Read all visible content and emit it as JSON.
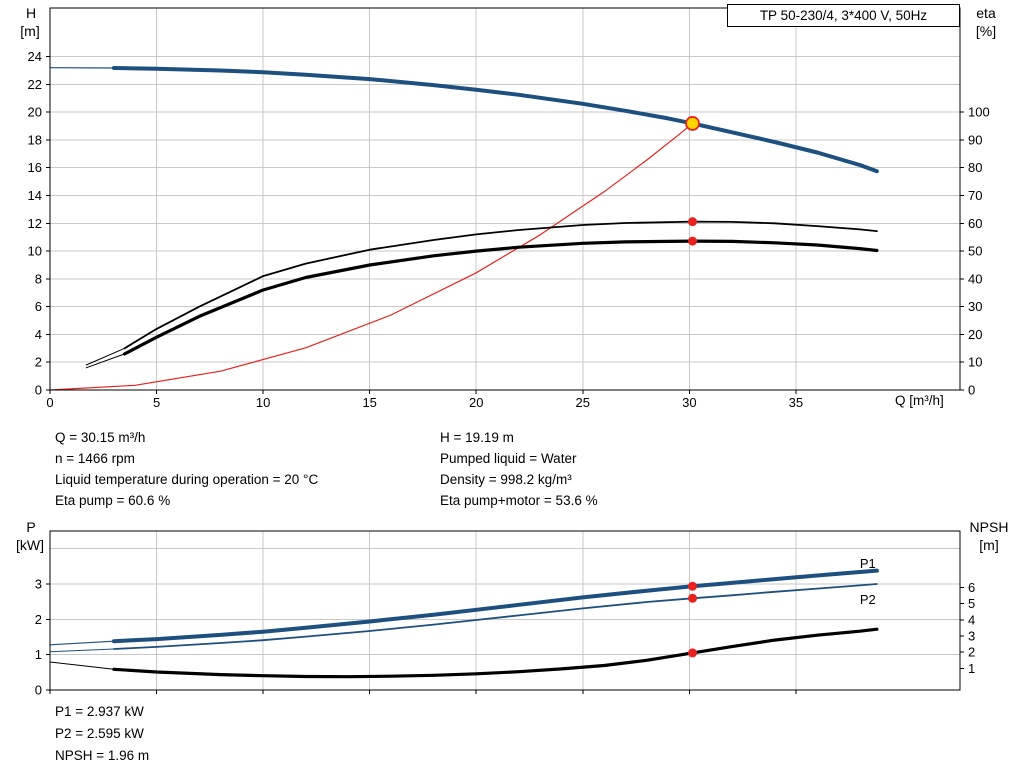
{
  "colors": {
    "blue": "#1d4f7f",
    "black": "#000000",
    "red": "#e8231e",
    "yellow": "#ffd500",
    "grid": "#c8c8c8",
    "axis": "#000000"
  },
  "top_info": {
    "left": [
      "Q = 30.15 m³/h",
      "n = 1466 rpm",
      "Liquid temperature during operation = 20 °C",
      "Eta pump = 60.6 %"
    ],
    "right": [
      "H = 19.19 m",
      "Pumped liquid = Water",
      "Density = 998.2 kg/m³",
      "Eta pump+motor = 53.6 %"
    ]
  },
  "bottom_info": [
    "P1 = 2.937 kW",
    "P2 = 2.595 kW",
    "NPSH = 1.96 m"
  ],
  "chart_data": [
    {
      "id": "hq",
      "type": "line",
      "title": "TP 50-230/4, 3*400 V, 50Hz",
      "x_axis": {
        "label": "Q [m³/h]",
        "min": 0,
        "max": 42.7,
        "ticks": [
          0,
          5,
          10,
          15,
          20,
          25,
          30,
          35
        ],
        "show_labels": true,
        "grid": true
      },
      "y_left": {
        "label": "H",
        "unit": "[m]",
        "min": 0,
        "max": 27.5,
        "ticks": [
          0,
          2,
          4,
          6,
          8,
          10,
          12,
          14,
          16,
          18,
          20,
          22,
          24
        ],
        "grid": true
      },
      "y_right": {
        "label": "eta",
        "unit": "[%]",
        "min": 0,
        "max": 137.5,
        "ticks": [
          0,
          10,
          20,
          30,
          40,
          50,
          60,
          70,
          80,
          90,
          100
        ]
      },
      "series": [
        {
          "name": "head-lead",
          "axis": "left",
          "color": "blue",
          "width": 1.2,
          "points": [
            [
              0,
              23.2
            ],
            [
              3,
              23.18
            ]
          ]
        },
        {
          "name": "head",
          "axis": "left",
          "color": "blue",
          "width": 4,
          "points": [
            [
              3,
              23.18
            ],
            [
              5,
              23.12
            ],
            [
              8,
              23.0
            ],
            [
              10,
              22.88
            ],
            [
              12,
              22.7
            ],
            [
              15,
              22.38
            ],
            [
              18,
              21.95
            ],
            [
              20,
              21.62
            ],
            [
              22,
              21.25
            ],
            [
              25,
              20.6
            ],
            [
              27,
              20.1
            ],
            [
              29,
              19.55
            ],
            [
              30.15,
              19.19
            ],
            [
              32,
              18.55
            ],
            [
              34,
              17.85
            ],
            [
              36,
              17.1
            ],
            [
              38,
              16.2
            ],
            [
              38.8,
              15.75
            ]
          ]
        },
        {
          "name": "duty-parabola",
          "axis": "left",
          "color": "red",
          "width": 1.2,
          "points": [
            [
              0,
              0
            ],
            [
              4,
              0.34
            ],
            [
              8,
              1.35
            ],
            [
              12,
              3.04
            ],
            [
              16,
              5.4
            ],
            [
              20,
              8.44
            ],
            [
              23,
              11.17
            ],
            [
              26,
              14.27
            ],
            [
              28,
              16.55
            ],
            [
              29.5,
              18.37
            ],
            [
              30.15,
              19.19
            ]
          ]
        },
        {
          "name": "eta-pump-lead",
          "axis": "right",
          "color": "black",
          "width": 1,
          "points": [
            [
              1.7,
              9
            ],
            [
              3.5,
              15
            ]
          ]
        },
        {
          "name": "eta-pump",
          "axis": "right",
          "color": "black",
          "width": 1.8,
          "points": [
            [
              3.5,
              15
            ],
            [
              5,
              22
            ],
            [
              7,
              30
            ],
            [
              10,
              41
            ],
            [
              12,
              45.5
            ],
            [
              15,
              50.5
            ],
            [
              18,
              54
            ],
            [
              20,
              56
            ],
            [
              22,
              57.6
            ],
            [
              25,
              59.4
            ],
            [
              27,
              60.1
            ],
            [
              30.15,
              60.6
            ],
            [
              32,
              60.5
            ],
            [
              34,
              60
            ],
            [
              36,
              59
            ],
            [
              38,
              57.8
            ],
            [
              38.8,
              57.2
            ]
          ]
        },
        {
          "name": "eta-pump-motor-lead",
          "axis": "right",
          "color": "black",
          "width": 1,
          "points": [
            [
              1.7,
              8
            ],
            [
              3.5,
              13
            ]
          ]
        },
        {
          "name": "eta-pump-motor",
          "axis": "right",
          "color": "black",
          "width": 3.2,
          "points": [
            [
              3.5,
              13
            ],
            [
              5,
              19
            ],
            [
              7,
              26.5
            ],
            [
              10,
              36
            ],
            [
              12,
              40.5
            ],
            [
              15,
              45
            ],
            [
              18,
              48.3
            ],
            [
              20,
              50
            ],
            [
              22,
              51.4
            ],
            [
              25,
              52.8
            ],
            [
              27,
              53.3
            ],
            [
              30.15,
              53.6
            ],
            [
              32,
              53.5
            ],
            [
              34,
              53
            ],
            [
              36,
              52.2
            ],
            [
              38,
              50.9
            ],
            [
              38.8,
              50.2
            ]
          ]
        }
      ],
      "markers": [
        {
          "name": "eta-pump-motor-point",
          "axis": "right",
          "x": 30.15,
          "y": 53.6,
          "fill": "red",
          "r": 4.5
        },
        {
          "name": "eta-pump-point",
          "axis": "right",
          "x": 30.15,
          "y": 60.6,
          "fill": "red",
          "r": 4.5
        },
        {
          "name": "duty-point",
          "axis": "left",
          "x": 30.15,
          "y": 19.19,
          "fill": "yellow",
          "stroke": "red",
          "stroke_width": 1.8,
          "r": 6.5
        }
      ],
      "annotations": []
    },
    {
      "id": "pq",
      "type": "line",
      "title": "",
      "x_axis": {
        "label": "",
        "min": 0,
        "max": 42.7,
        "ticks": [
          0,
          5,
          10,
          15,
          20,
          25,
          30,
          35
        ],
        "show_labels": false,
        "grid": true
      },
      "y_left": {
        "label": "P",
        "unit": "[kW]",
        "min": 0,
        "max": 4.5,
        "ticks": [
          0,
          1,
          2,
          3
        ],
        "grid": true,
        "extra_grid": [
          4
        ]
      },
      "y_right": {
        "label": "NPSH",
        "unit": "[m]",
        "min": -0.33,
        "max": 9.48,
        "ticks": [
          1,
          2,
          3,
          4,
          5,
          6
        ]
      },
      "series": [
        {
          "name": "p1-lead",
          "axis": "left",
          "color": "blue",
          "width": 1.2,
          "points": [
            [
              0,
              1.28
            ],
            [
              3,
              1.38
            ]
          ]
        },
        {
          "name": "p1",
          "axis": "left",
          "color": "blue",
          "width": 4,
          "points": [
            [
              3,
              1.38
            ],
            [
              5,
              1.44
            ],
            [
              8,
              1.56
            ],
            [
              10,
              1.65
            ],
            [
              12,
              1.76
            ],
            [
              15,
              1.94
            ],
            [
              18,
              2.13
            ],
            [
              20,
              2.27
            ],
            [
              22,
              2.41
            ],
            [
              25,
              2.62
            ],
            [
              28,
              2.81
            ],
            [
              30.15,
              2.937
            ],
            [
              32,
              3.03
            ],
            [
              34,
              3.14
            ],
            [
              36,
              3.24
            ],
            [
              38,
              3.34
            ],
            [
              38.8,
              3.38
            ]
          ]
        },
        {
          "name": "p2-lead",
          "axis": "left",
          "color": "blue",
          "width": 1,
          "points": [
            [
              0,
              1.08
            ],
            [
              3,
              1.16
            ]
          ]
        },
        {
          "name": "p2",
          "axis": "left",
          "color": "blue",
          "width": 1.8,
          "points": [
            [
              3,
              1.16
            ],
            [
              5,
              1.22
            ],
            [
              8,
              1.33
            ],
            [
              10,
              1.41
            ],
            [
              12,
              1.51
            ],
            [
              15,
              1.67
            ],
            [
              18,
              1.85
            ],
            [
              20,
              1.98
            ],
            [
              22,
              2.11
            ],
            [
              25,
              2.31
            ],
            [
              28,
              2.49
            ],
            [
              30.15,
              2.595
            ],
            [
              32,
              2.68
            ],
            [
              34,
              2.78
            ],
            [
              36,
              2.87
            ],
            [
              38,
              2.96
            ],
            [
              38.8,
              3.0
            ]
          ]
        },
        {
          "name": "npsh-lead",
          "axis": "right",
          "color": "black",
          "width": 1,
          "points": [
            [
              0,
              1.4
            ],
            [
              3,
              0.95
            ]
          ]
        },
        {
          "name": "npsh",
          "axis": "right",
          "color": "black",
          "width": 3.2,
          "points": [
            [
              3,
              0.95
            ],
            [
              5,
              0.78
            ],
            [
              8,
              0.62
            ],
            [
              10,
              0.55
            ],
            [
              12,
              0.5
            ],
            [
              14,
              0.49
            ],
            [
              16,
              0.52
            ],
            [
              18,
              0.58
            ],
            [
              20,
              0.67
            ],
            [
              22,
              0.8
            ],
            [
              24,
              0.97
            ],
            [
              26,
              1.18
            ],
            [
              28,
              1.5
            ],
            [
              30.15,
              1.96
            ],
            [
              32,
              2.35
            ],
            [
              34,
              2.75
            ],
            [
              36,
              3.05
            ],
            [
              38,
              3.3
            ],
            [
              38.8,
              3.42
            ]
          ]
        }
      ],
      "markers": [
        {
          "name": "p1-point",
          "axis": "left",
          "x": 30.15,
          "y": 2.937,
          "fill": "red",
          "r": 4.5
        },
        {
          "name": "p2-point",
          "axis": "left",
          "x": 30.15,
          "y": 2.595,
          "fill": "red",
          "r": 4.5
        },
        {
          "name": "npsh-point",
          "axis": "right",
          "x": 30.15,
          "y": 1.96,
          "fill": "red",
          "r": 4.5
        }
      ],
      "annotations": [
        {
          "text": "P1",
          "axis": "left",
          "x": 38,
          "y": 3.45,
          "color": "blue"
        },
        {
          "text": "P2",
          "axis": "left",
          "x": 38,
          "y": 2.43,
          "color": "blue"
        }
      ]
    }
  ]
}
